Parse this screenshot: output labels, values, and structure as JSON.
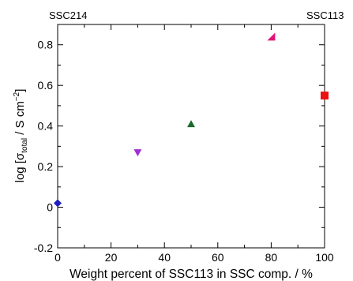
{
  "chart_data": {
    "type": "scatter",
    "xlabel": "Weight percent of SSC113 in SSC comp. / %",
    "ylabel_parts": {
      "prefix": "log [σ",
      "subscript": "total",
      "middle": " / S cm",
      "superscript": "−2",
      "suffix": "]"
    },
    "corner_labels": {
      "left": "SSC214",
      "right": "SSC113"
    },
    "xlim": [
      0,
      100
    ],
    "ylim": [
      -0.2,
      0.9
    ],
    "x_ticks": [
      0,
      20,
      40,
      60,
      80,
      100
    ],
    "y_ticks": [
      -0.2,
      0,
      0.2,
      0.4,
      0.6,
      0.8
    ],
    "x_tick_labels": [
      "0",
      "20",
      "40",
      "60",
      "80",
      "100"
    ],
    "y_tick_labels": [
      "-0.2",
      "0",
      "0.2",
      "0.4",
      "0.6",
      "0.8"
    ],
    "points": [
      {
        "x": 0,
        "y": 0.02,
        "marker": "diamond",
        "color": "#1f1fbf"
      },
      {
        "x": 30,
        "y": 0.27,
        "marker": "triangle-down",
        "color": "#a030d0"
      },
      {
        "x": 50,
        "y": 0.41,
        "marker": "triangle-up",
        "color": "#1a6b2a"
      },
      {
        "x": 80,
        "y": 0.84,
        "marker": "triangle-left",
        "color": "#e0147a"
      },
      {
        "x": 100,
        "y": 0.55,
        "marker": "square",
        "color": "#ee1111"
      }
    ]
  }
}
